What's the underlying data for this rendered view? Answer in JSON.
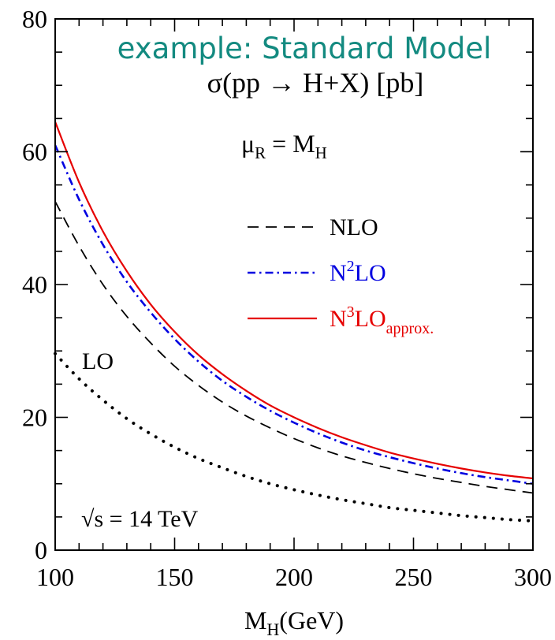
{
  "chart_data": {
    "type": "line",
    "title": "example: Standard Model",
    "subtitle": "σ(pp → H+X) [pb]",
    "scale_note": {
      "text": "μ",
      "sub": "R",
      "mid": " = M",
      "sub2": "H"
    },
    "energy_note": {
      "root": "√",
      "text": "s = 14 TeV"
    },
    "xlabel": {
      "main": "M",
      "sub": "H",
      "rest": "(GeV)"
    },
    "ylabel": "",
    "xlim": [
      100,
      300
    ],
    "ylim": [
      0,
      80
    ],
    "xticks": [
      100,
      150,
      200,
      250,
      300
    ],
    "yticks": [
      0,
      20,
      40,
      60,
      80
    ],
    "grid": false,
    "legend_position": "right-middle",
    "series": [
      {
        "name": "LO",
        "legend": false,
        "inline_label": "LO",
        "color": "#000000",
        "style": "dotted",
        "x": [
          100,
          110,
          120,
          130,
          140,
          150,
          160,
          170,
          180,
          190,
          200,
          210,
          220,
          230,
          240,
          250,
          260,
          270,
          280,
          290,
          300
        ],
        "y": [
          29.6,
          25.8,
          22.6,
          19.8,
          17.5,
          15.5,
          13.8,
          12.4,
          11.1,
          10.0,
          9.1,
          8.3,
          7.6,
          7.0,
          6.4,
          6.0,
          5.6,
          5.2,
          4.9,
          4.6,
          4.4
        ]
      },
      {
        "name": "NLO",
        "legend": true,
        "color": "#000000",
        "style": "dashed",
        "x": [
          100,
          110,
          120,
          130,
          140,
          150,
          160,
          170,
          180,
          190,
          200,
          210,
          220,
          230,
          240,
          250,
          260,
          270,
          280,
          290,
          300
        ],
        "y": [
          52.5,
          45.8,
          40.0,
          35.2,
          31.2,
          27.7,
          24.8,
          22.3,
          20.2,
          18.4,
          16.8,
          15.4,
          14.2,
          13.2,
          12.3,
          11.5,
          10.8,
          10.2,
          9.6,
          9.1,
          8.6
        ]
      },
      {
        "name": "N2LO",
        "legend": true,
        "label": {
          "main": "N",
          "sup": "2",
          "rest": "LO",
          "sub": ""
        },
        "color": "#0000e0",
        "style": "dashdot",
        "x": [
          100,
          110,
          120,
          130,
          140,
          150,
          160,
          170,
          180,
          190,
          200,
          210,
          220,
          230,
          240,
          250,
          260,
          270,
          280,
          290,
          300
        ],
        "y": [
          61.0,
          52.8,
          46.0,
          40.4,
          35.8,
          31.8,
          28.4,
          25.5,
          23.1,
          21.0,
          19.2,
          17.6,
          16.2,
          15.0,
          14.0,
          13.1,
          12.3,
          11.6,
          11.0,
          10.5,
          10.0
        ]
      },
      {
        "name": "N3LOapprox.",
        "legend": true,
        "label": {
          "main": "N",
          "sup": "3",
          "rest": "LO",
          "sub": "approx."
        },
        "color": "#e60000",
        "style": "solid",
        "x": [
          100,
          110,
          120,
          130,
          140,
          150,
          160,
          170,
          180,
          190,
          200,
          210,
          220,
          230,
          240,
          250,
          260,
          270,
          280,
          290,
          300
        ],
        "y": [
          64.5,
          55.4,
          48.0,
          42.0,
          37.0,
          32.9,
          29.4,
          26.5,
          24.0,
          21.8,
          20.0,
          18.4,
          17.0,
          15.8,
          14.7,
          13.8,
          13.0,
          12.3,
          11.7,
          11.2,
          10.8
        ]
      }
    ]
  }
}
